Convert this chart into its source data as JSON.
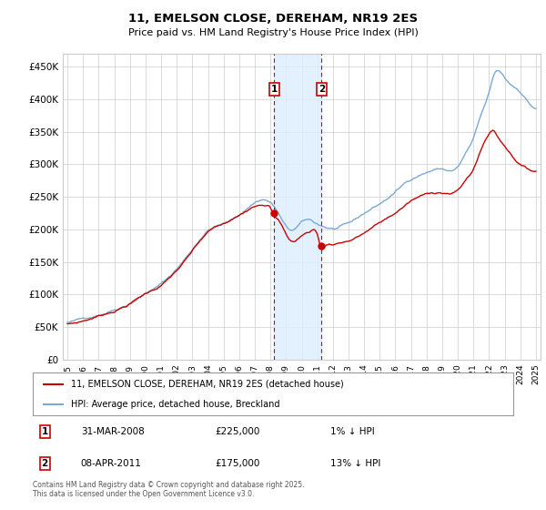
{
  "title": "11, EMELSON CLOSE, DEREHAM, NR19 2ES",
  "subtitle": "Price paid vs. HM Land Registry's House Price Index (HPI)",
  "ytick_values": [
    0,
    50000,
    100000,
    150000,
    200000,
    250000,
    300000,
    350000,
    400000,
    450000
  ],
  "ylim": [
    0,
    470000
  ],
  "xlim_start": 1994.7,
  "xlim_end": 2025.3,
  "xticks": [
    1995,
    1996,
    1997,
    1998,
    1999,
    2000,
    2001,
    2002,
    2003,
    2004,
    2005,
    2006,
    2007,
    2008,
    2009,
    2010,
    2011,
    2012,
    2013,
    2014,
    2015,
    2016,
    2017,
    2018,
    2019,
    2020,
    2021,
    2022,
    2023,
    2024,
    2025
  ],
  "property_color": "#cc0000",
  "hpi_color": "#7aaad4",
  "sale1_x": 2008.25,
  "sale2_x": 2011.27,
  "legend_property": "11, EMELSON CLOSE, DEREHAM, NR19 2ES (detached house)",
  "legend_hpi": "HPI: Average price, detached house, Breckland",
  "annotation1_date": "31-MAR-2008",
  "annotation1_price": "£225,000",
  "annotation1_hpi": "1% ↓ HPI",
  "annotation2_date": "08-APR-2011",
  "annotation2_price": "£175,000",
  "annotation2_hpi": "13% ↓ HPI",
  "footer": "Contains HM Land Registry data © Crown copyright and database right 2025.\nThis data is licensed under the Open Government Licence v3.0.",
  "background_color": "#ffffff",
  "grid_color": "#cccccc"
}
